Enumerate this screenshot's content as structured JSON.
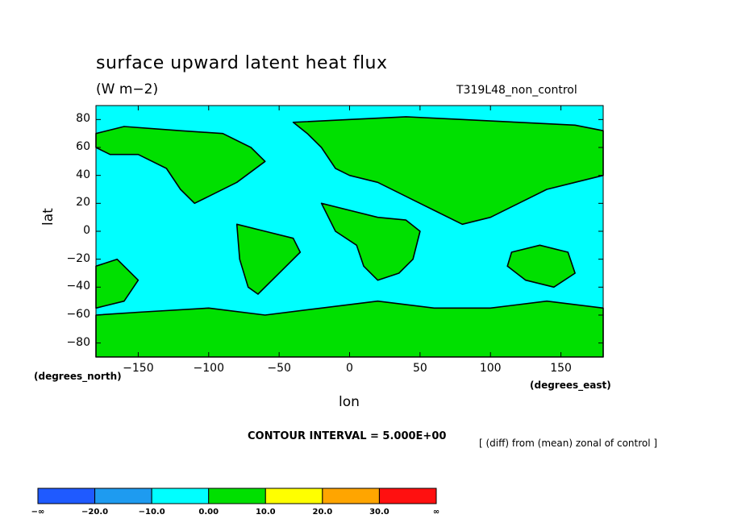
{
  "chart_data": {
    "type": "heatmap",
    "title": "surface upward latent heat flux",
    "units": "(W m−2)",
    "run_name": "T319L48_non_control",
    "xlabel": "lon",
    "ylabel": "lat",
    "x_units": "(degrees_east)",
    "y_units": "(degrees_north)",
    "xlim": [
      -180,
      180
    ],
    "ylim": [
      -90,
      90
    ],
    "x_ticks": [
      -150,
      -100,
      -50,
      0,
      50,
      100,
      150
    ],
    "y_ticks": [
      80,
      60,
      40,
      20,
      0,
      -20,
      -40,
      -60,
      -80
    ],
    "x_tick_labels": [
      "−150",
      "−100",
      "−50",
      "0",
      "50",
      "100",
      "150"
    ],
    "y_tick_labels": [
      "80",
      "60",
      "40",
      "20",
      "0",
      "−20",
      "−40",
      "−60",
      "−80"
    ],
    "contour_interval": "CONTOUR INTERVAL = 5.000E+00",
    "note": "[ (diff) from (mean) zonal of control ]",
    "colorbar": {
      "colors": [
        "#1f5aff",
        "#1e9bf0",
        "#00ffff",
        "#00e000",
        "#ffff00",
        "#ffa500",
        "#ff1010"
      ],
      "labels": [
        "−∞",
        "−20.0",
        "−10.0",
        "0.00",
        "10.0",
        "20.0",
        "30.0",
        "∞"
      ]
    },
    "field_colors": {
      "positive": "#00e000",
      "negative": "#00ffff"
    },
    "regions_positive": [
      {
        "name": "north-america",
        "outline": [
          [
            -180,
            70
          ],
          [
            -160,
            75
          ],
          [
            -120,
            72
          ],
          [
            -90,
            70
          ],
          [
            -70,
            60
          ],
          [
            -60,
            50
          ],
          [
            -80,
            35
          ],
          [
            -100,
            25
          ],
          [
            -110,
            20
          ],
          [
            -120,
            30
          ],
          [
            -130,
            45
          ],
          [
            -150,
            55
          ],
          [
            -170,
            55
          ],
          [
            -180,
            60
          ]
        ]
      },
      {
        "name": "eurasia",
        "outline": [
          [
            -40,
            78
          ],
          [
            0,
            80
          ],
          [
            40,
            82
          ],
          [
            80,
            80
          ],
          [
            120,
            78
          ],
          [
            160,
            76
          ],
          [
            180,
            72
          ],
          [
            180,
            40
          ],
          [
            160,
            35
          ],
          [
            140,
            30
          ],
          [
            120,
            20
          ],
          [
            100,
            10
          ],
          [
            80,
            5
          ],
          [
            60,
            15
          ],
          [
            40,
            25
          ],
          [
            20,
            35
          ],
          [
            0,
            40
          ],
          [
            -10,
            45
          ],
          [
            -20,
            60
          ],
          [
            -30,
            70
          ]
        ]
      },
      {
        "name": "africa",
        "outline": [
          [
            -20,
            20
          ],
          [
            0,
            15
          ],
          [
            20,
            10
          ],
          [
            40,
            8
          ],
          [
            50,
            0
          ],
          [
            45,
            -20
          ],
          [
            35,
            -30
          ],
          [
            20,
            -35
          ],
          [
            10,
            -25
          ],
          [
            5,
            -10
          ],
          [
            -10,
            0
          ]
        ]
      },
      {
        "name": "south-america",
        "outline": [
          [
            -80,
            5
          ],
          [
            -60,
            0
          ],
          [
            -40,
            -5
          ],
          [
            -35,
            -15
          ],
          [
            -45,
            -25
          ],
          [
            -55,
            -35
          ],
          [
            -65,
            -45
          ],
          [
            -72,
            -40
          ],
          [
            -78,
            -20
          ]
        ]
      },
      {
        "name": "southwest-pacific",
        "outline": [
          [
            -180,
            -25
          ],
          [
            -165,
            -20
          ],
          [
            -150,
            -35
          ],
          [
            -160,
            -50
          ],
          [
            -180,
            -55
          ]
        ]
      },
      {
        "name": "australia",
        "outline": [
          [
            115,
            -15
          ],
          [
            135,
            -10
          ],
          [
            155,
            -15
          ],
          [
            160,
            -30
          ],
          [
            145,
            -40
          ],
          [
            125,
            -35
          ],
          [
            112,
            -25
          ]
        ]
      },
      {
        "name": "southern-band",
        "outline": [
          [
            -180,
            -60
          ],
          [
            -150,
            -58
          ],
          [
            -100,
            -55
          ],
          [
            -60,
            -60
          ],
          [
            -20,
            -55
          ],
          [
            20,
            -50
          ],
          [
            60,
            -55
          ],
          [
            100,
            -55
          ],
          [
            140,
            -50
          ],
          [
            180,
            -55
          ],
          [
            180,
            -90
          ],
          [
            -180,
            -90
          ]
        ]
      }
    ]
  }
}
